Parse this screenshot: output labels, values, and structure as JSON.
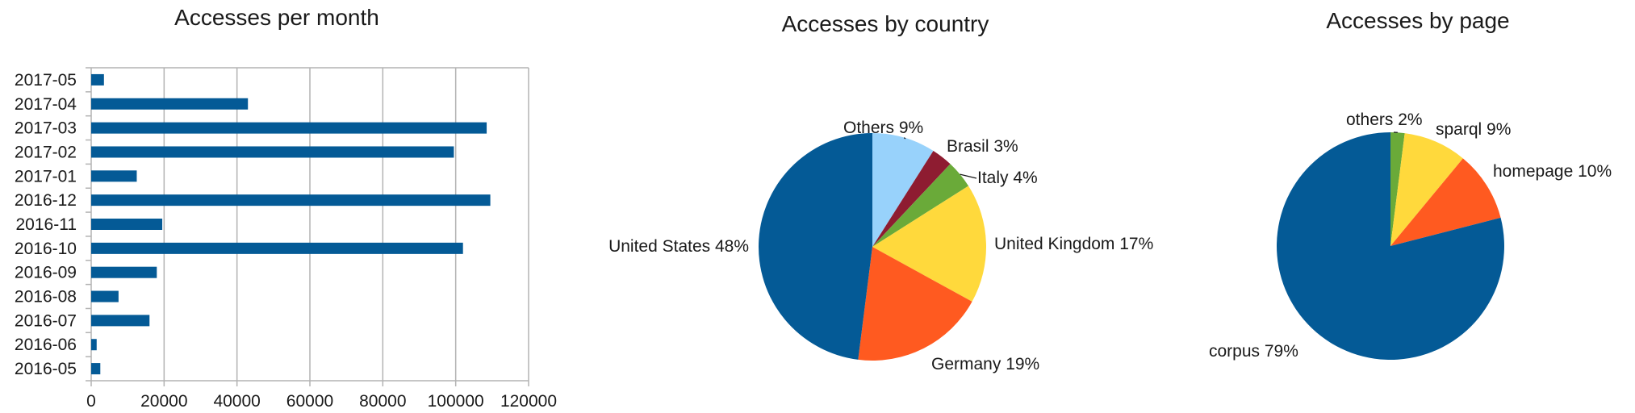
{
  "chart_data": [
    {
      "type": "bar",
      "orientation": "horizontal",
      "title": "Accesses per month",
      "categories": [
        "2017-05",
        "2017-04",
        "2017-03",
        "2017-02",
        "2017-01",
        "2016-12",
        "2016-11",
        "2016-10",
        "2016-09",
        "2016-08",
        "2016-07",
        "2016-06",
        "2016-05"
      ],
      "values": [
        3500,
        43000,
        108500,
        99500,
        12500,
        109500,
        19500,
        102000,
        18000,
        7500,
        16000,
        1500,
        2500
      ],
      "xlim": [
        0,
        120000
      ],
      "xticks": [
        "0",
        "20000",
        "40000",
        "60000",
        "80000",
        "100000",
        "120000"
      ],
      "grid": true,
      "color": "#045a96"
    },
    {
      "type": "pie",
      "title": "Accesses by country",
      "slices": [
        {
          "label": "Others 9%",
          "value": 9,
          "color": "#98d2fb"
        },
        {
          "label": "Brasil 3%",
          "value": 3,
          "color": "#8e1c31"
        },
        {
          "label": "Italy 4%",
          "value": 4,
          "color": "#6aaa39"
        },
        {
          "label": "United Kingdom 17%",
          "value": 17,
          "color": "#ffd93c"
        },
        {
          "label": "Germany 19%",
          "value": 19,
          "color": "#ff5a20"
        },
        {
          "label": "United States 48%",
          "value": 48,
          "color": "#045a96"
        }
      ]
    },
    {
      "type": "pie",
      "title": "Accesses by page",
      "slices": [
        {
          "label": "others 2%",
          "value": 2,
          "color": "#6aaa39"
        },
        {
          "label": "sparql 9%",
          "value": 9,
          "color": "#ffd93c"
        },
        {
          "label": "homepage 10%",
          "value": 10,
          "color": "#ff5a20"
        },
        {
          "label": "corpus 79%",
          "value": 79,
          "color": "#045a96"
        }
      ]
    }
  ]
}
